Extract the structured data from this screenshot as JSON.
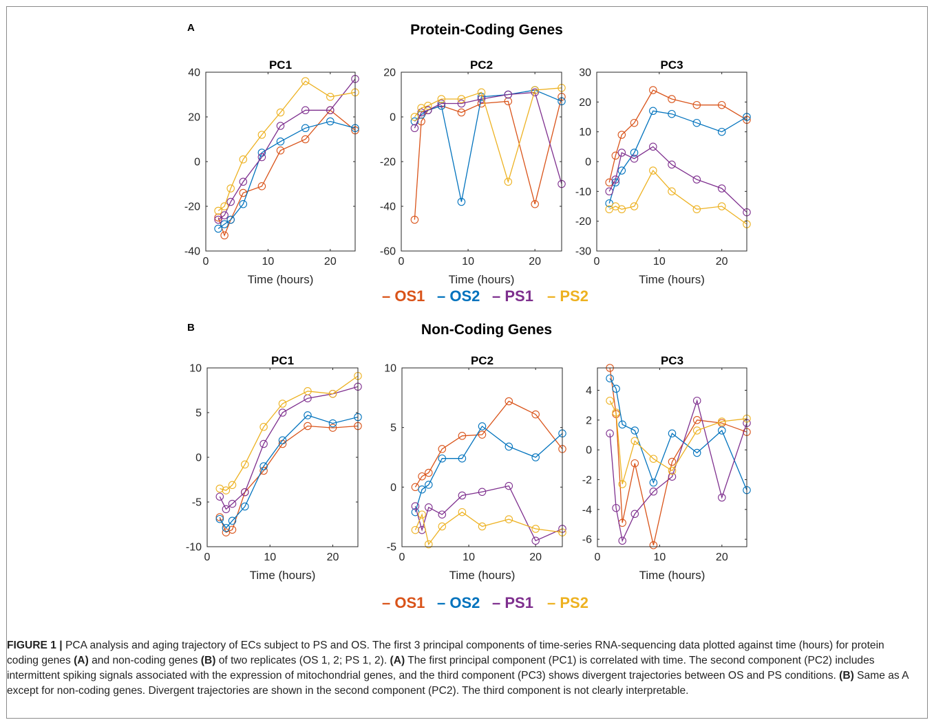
{
  "legend": [
    {
      "name": "OS1",
      "color": "#D95319"
    },
    {
      "name": "OS2",
      "color": "#0072BD"
    },
    {
      "name": "PS1",
      "color": "#7E2F8E"
    },
    {
      "name": "PS2",
      "color": "#EDB120"
    }
  ],
  "panels": [
    {
      "letter": "A",
      "title": "Protein-Coding Genes"
    },
    {
      "letter": "B",
      "title": "Non-Coding Genes"
    }
  ],
  "chart_data": [
    {
      "type": "line",
      "panel": "A",
      "title": "PC1",
      "xlabel": "Time (hours)",
      "ylabel": "",
      "xlim": [
        0,
        24
      ],
      "ylim": [
        -40,
        40
      ],
      "xticks": [
        0,
        10,
        20
      ],
      "yticks": [
        -40,
        -20,
        0,
        20,
        40
      ],
      "x": [
        2,
        3,
        4,
        6,
        9,
        12,
        16,
        20,
        24
      ],
      "series": [
        {
          "name": "OS1",
          "values": [
            -25,
            -33,
            -26,
            -14,
            -11,
            5,
            10,
            23,
            14
          ]
        },
        {
          "name": "OS2",
          "values": [
            -30,
            -28,
            -26,
            -19,
            4,
            9,
            15,
            18,
            15
          ]
        },
        {
          "name": "PS1",
          "values": [
            -26,
            -24,
            -18,
            -9,
            2,
            16,
            23,
            23,
            37
          ]
        },
        {
          "name": "PS2",
          "values": [
            -22,
            -20,
            -12,
            1,
            12,
            22,
            36,
            29,
            31
          ]
        }
      ]
    },
    {
      "type": "line",
      "panel": "A",
      "title": "PC2",
      "xlabel": "Time (hours)",
      "ylabel": "",
      "xlim": [
        0,
        24
      ],
      "ylim": [
        -60,
        20
      ],
      "xticks": [
        0,
        10,
        20
      ],
      "yticks": [
        -60,
        -40,
        -20,
        0,
        20
      ],
      "x": [
        2,
        3,
        4,
        6,
        9,
        12,
        16,
        20,
        24
      ],
      "series": [
        {
          "name": "OS1",
          "values": [
            -46,
            -2,
            3,
            5,
            2,
            6,
            7,
            -39,
            9
          ]
        },
        {
          "name": "OS2",
          "values": [
            -2,
            1,
            3,
            5,
            -38,
            9,
            10,
            12,
            7
          ]
        },
        {
          "name": "PS1",
          "values": [
            -5,
            2,
            3,
            6,
            6,
            8,
            10,
            11,
            -30
          ]
        },
        {
          "name": "PS2",
          "values": [
            0,
            4,
            5,
            8,
            8,
            11,
            -29,
            12,
            13
          ]
        }
      ]
    },
    {
      "type": "line",
      "panel": "A",
      "title": "PC3",
      "xlabel": "Time (hours)",
      "ylabel": "",
      "xlim": [
        0,
        24
      ],
      "ylim": [
        -30,
        30
      ],
      "xticks": [
        0,
        10,
        20
      ],
      "yticks": [
        -30,
        -20,
        -10,
        0,
        10,
        20,
        30
      ],
      "x": [
        2,
        3,
        4,
        6,
        9,
        12,
        16,
        20,
        24
      ],
      "series": [
        {
          "name": "OS1",
          "values": [
            -7,
            2,
            9,
            13,
            24,
            21,
            19,
            19,
            14
          ]
        },
        {
          "name": "OS2",
          "values": [
            -14,
            -7,
            -3,
            3,
            17,
            16,
            13,
            10,
            15
          ]
        },
        {
          "name": "PS1",
          "values": [
            -10,
            -6,
            3,
            1,
            5,
            -1,
            -6,
            -9,
            -17
          ]
        },
        {
          "name": "PS2",
          "values": [
            -16,
            -15,
            -16,
            -15,
            -3,
            -10,
            -16,
            -15,
            -21
          ]
        }
      ]
    },
    {
      "type": "line",
      "panel": "B",
      "title": "PC1",
      "xlabel": "Time (hours)",
      "ylabel": "",
      "xlim": [
        0,
        24
      ],
      "ylim": [
        -10,
        10
      ],
      "xticks": [
        0,
        10,
        20
      ],
      "yticks": [
        -10,
        -5,
        0,
        5,
        10
      ],
      "x": [
        2,
        3,
        4,
        6,
        9,
        12,
        16,
        20,
        24
      ],
      "series": [
        {
          "name": "OS1",
          "values": [
            -6.7,
            -8.4,
            -8.1,
            -3.9,
            -1.5,
            1.5,
            3.5,
            3.3,
            3.5
          ]
        },
        {
          "name": "OS2",
          "values": [
            -6.9,
            -7.9,
            -7.1,
            -5.5,
            -1.0,
            1.9,
            4.7,
            3.8,
            4.5
          ]
        },
        {
          "name": "PS1",
          "values": [
            -4.4,
            -5.8,
            -5.2,
            -3.9,
            1.5,
            5.0,
            6.6,
            7.1,
            7.9
          ]
        },
        {
          "name": "PS2",
          "values": [
            -3.5,
            -3.7,
            -3.1,
            -0.8,
            3.4,
            6.0,
            7.4,
            7.1,
            9.1
          ]
        }
      ]
    },
    {
      "type": "line",
      "panel": "B",
      "title": "PC2",
      "xlabel": "Time (hours)",
      "ylabel": "",
      "xlim": [
        0,
        24
      ],
      "ylim": [
        -5,
        10
      ],
      "xticks": [
        0,
        10,
        20
      ],
      "yticks": [
        -5,
        0,
        5,
        10
      ],
      "x": [
        2,
        3,
        4,
        6,
        9,
        12,
        16,
        20,
        24
      ],
      "series": [
        {
          "name": "OS1",
          "values": [
            0.0,
            0.9,
            1.2,
            3.2,
            4.3,
            4.4,
            7.2,
            6.1,
            3.2
          ]
        },
        {
          "name": "OS2",
          "values": [
            -2.1,
            -0.2,
            0.2,
            2.4,
            2.4,
            5.1,
            3.4,
            2.5,
            4.5
          ]
        },
        {
          "name": "PS1",
          "values": [
            -1.6,
            -3.6,
            -1.7,
            -2.3,
            -0.7,
            -0.4,
            0.1,
            -4.5,
            -3.5
          ]
        },
        {
          "name": "PS2",
          "values": [
            -3.6,
            -2.3,
            -4.8,
            -3.3,
            -2.1,
            -3.3,
            -2.7,
            -3.5,
            -3.8
          ]
        }
      ]
    },
    {
      "type": "line",
      "panel": "B",
      "title": "PC3",
      "xlabel": "Time (hours)",
      "ylabel": "",
      "xlim": [
        0,
        24
      ],
      "ylim": [
        -6.5,
        5.5
      ],
      "xticks": [
        0,
        10,
        20
      ],
      "yticks": [
        -6,
        -4,
        -2,
        0,
        2,
        4
      ],
      "x": [
        2,
        3,
        4,
        6,
        9,
        12,
        16,
        20,
        24
      ],
      "series": [
        {
          "name": "OS1",
          "values": [
            5.5,
            2.4,
            -4.9,
            -0.9,
            -6.4,
            -0.8,
            2.0,
            1.8,
            1.2
          ]
        },
        {
          "name": "OS2",
          "values": [
            4.8,
            4.1,
            1.7,
            1.3,
            -2.2,
            1.1,
            -0.2,
            1.3,
            -2.7
          ]
        },
        {
          "name": "PS1",
          "values": [
            1.1,
            -3.9,
            -6.1,
            -4.3,
            -2.8,
            -1.8,
            3.3,
            -3.2,
            1.8
          ]
        },
        {
          "name": "PS2",
          "values": [
            3.3,
            2.5,
            -2.3,
            0.6,
            -0.6,
            -1.4,
            1.3,
            1.9,
            2.1
          ]
        }
      ]
    }
  ],
  "caption": {
    "label": "FIGURE 1 |",
    "parts": [
      {
        "t": " PCA analysis and aging trajectory of ECs subject to PS and OS. The first 3 principal components of time-series RNA-sequencing data plotted against time (hours) for protein coding genes ",
        "b": false
      },
      {
        "t": "(A)",
        "b": true
      },
      {
        "t": " and non-coding genes ",
        "b": false
      },
      {
        "t": "(B)",
        "b": true
      },
      {
        "t": " of two replicates (OS 1, 2; PS 1, 2). ",
        "b": false
      },
      {
        "t": "(A)",
        "b": true
      },
      {
        "t": " The first principal component (PC1) is correlated with time. The second component (PC2) includes intermittent spiking signals associated with the expression of mitochondrial genes, and the third component (PC3) shows divergent trajectories between OS and PS conditions. ",
        "b": false
      },
      {
        "t": "(B)",
        "b": true
      },
      {
        "t": " Same as A except for non-coding genes. Divergent trajectories are shown in the second component (PC2). The third component is not clearly interpretable.",
        "b": false
      }
    ]
  }
}
